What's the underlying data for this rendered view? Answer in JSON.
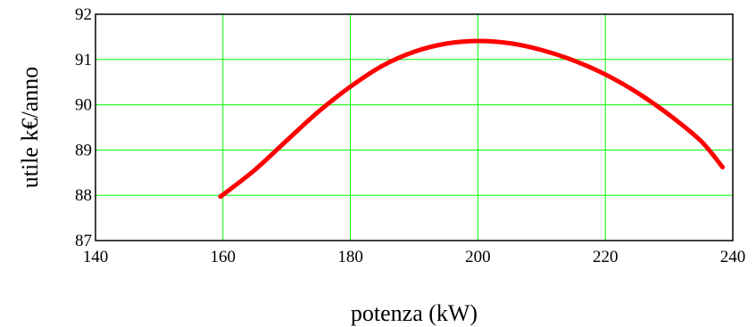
{
  "chart_data": {
    "type": "line",
    "xlabel": "potenza (kW)",
    "ylabel": "utile k€/anno",
    "xlim": [
      140,
      240
    ],
    "ylim": [
      87,
      92
    ],
    "x_ticks": [
      140,
      160,
      180,
      200,
      220,
      240
    ],
    "y_ticks": [
      87,
      88,
      89,
      90,
      91,
      92
    ],
    "grid": true,
    "colors": {
      "line": "#ff0000",
      "grid": "#00ff00",
      "frame": "#000000"
    },
    "series": [
      {
        "x": [
          159.6,
          165,
          170,
          175,
          180,
          185,
          190,
          195,
          200,
          205,
          210,
          215,
          220,
          225,
          230,
          235,
          238.4
        ],
        "y": [
          87.97,
          88.56,
          89.21,
          89.85,
          90.4,
          90.86,
          91.17,
          91.35,
          91.41,
          91.36,
          91.21,
          90.98,
          90.67,
          90.27,
          89.78,
          89.2,
          88.62
        ]
      }
    ]
  }
}
